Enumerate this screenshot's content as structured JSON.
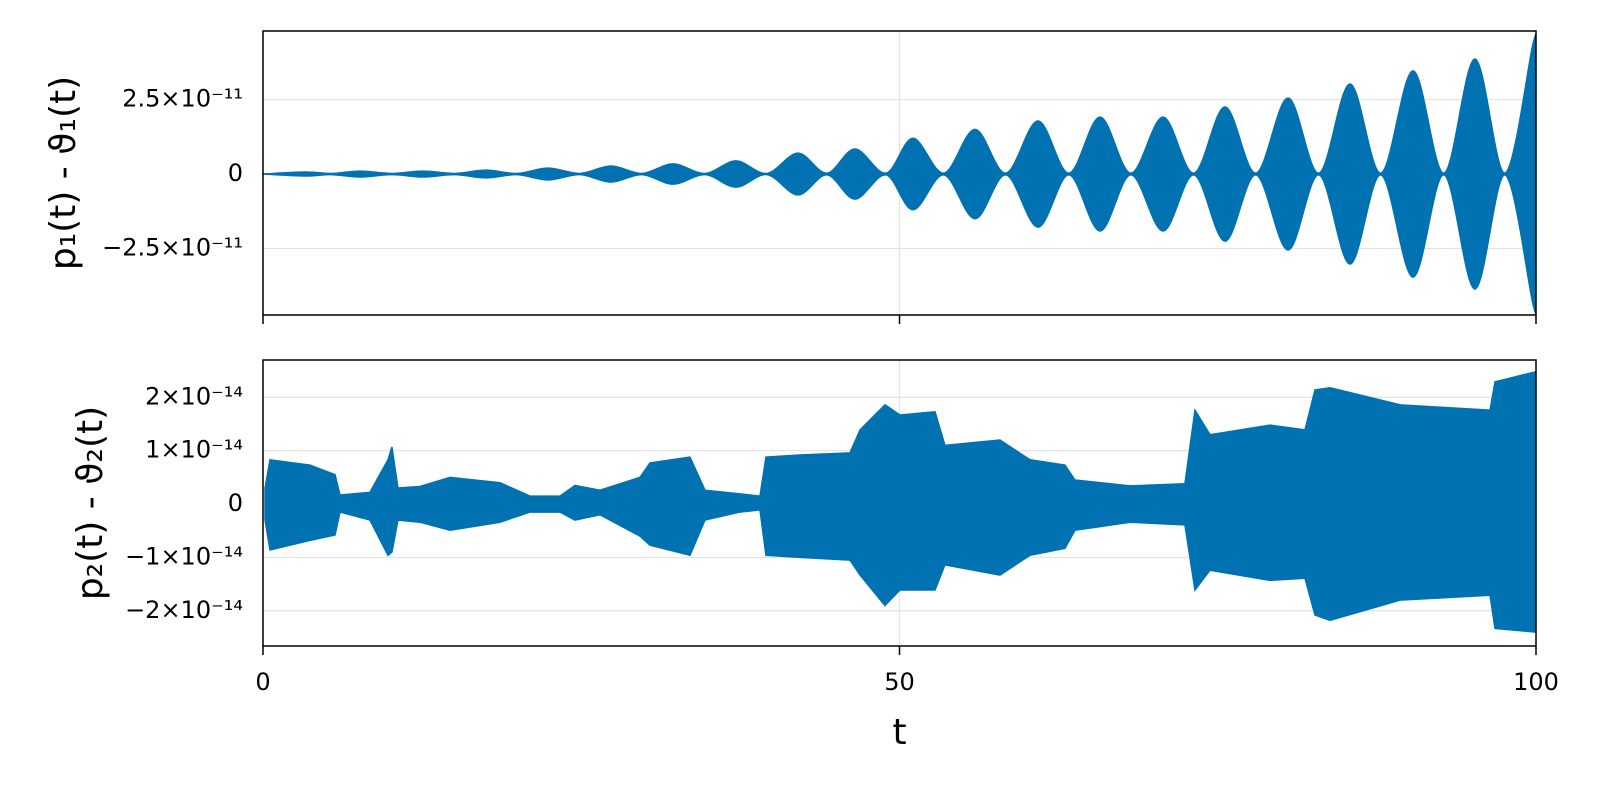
{
  "chart_data": [
    {
      "type": "area",
      "ylabel": "p₁(t) - ϑ₁(t)",
      "color": "#0072b2",
      "curve": "smooth",
      "grid": true,
      "xtick_labels": false,
      "x": [
        0,
        3.3,
        5.34,
        7.62,
        10.13,
        12.57,
        15.08,
        17.52,
        19.95,
        22.39,
        24.9,
        27.34,
        29.77,
        32.21,
        34.72,
        37.15,
        39.59,
        42.02,
        44.3,
        46.5,
        48.94,
        51.06,
        53.49,
        55.93,
        58.36,
        60.88,
        63.31,
        65.75,
        68.18,
        70.7,
        73.13,
        75.57,
        78.0,
        80.52,
        82.95,
        85.39,
        87.82,
        90.34,
        92.77,
        95.2,
        97.56,
        99.76,
        100
      ],
      "upper": [
        0,
        6.7e-13,
        2e-13,
        1e-12,
        2e-13,
        1e-12,
        2e-13,
        1.3e-12,
        2e-13,
        2e-12,
        2e-13,
        2.7e-12,
        2e-13,
        3.4e-12,
        2e-13,
        4.4e-12,
        2e-13,
        7e-12,
        3e-13,
        8.4e-12,
        3e-13,
        1.2e-11,
        3e-13,
        1.5e-11,
        3e-13,
        1.78e-11,
        3e-13,
        1.91e-11,
        3e-13,
        1.91e-11,
        3e-13,
        2.25e-11,
        3e-13,
        2.55e-11,
        3e-13,
        3.02e-11,
        3e-13,
        3.46e-11,
        3e-13,
        3.86e-11,
        3e-13,
        4.36e-11,
        4.36e-11
      ],
      "lower": [
        0,
        -6.7e-13,
        -2e-13,
        -1e-12,
        -2e-13,
        -1e-12,
        -2e-13,
        -1.3e-12,
        -2e-13,
        -2e-12,
        -2e-13,
        -2.7e-12,
        -2e-13,
        -3.4e-12,
        -2e-13,
        -4.4e-12,
        -2e-13,
        -7e-12,
        -3e-13,
        -8.4e-12,
        -3e-13,
        -1.2e-11,
        -3e-13,
        -1.5e-11,
        -3e-13,
        -1.78e-11,
        -3e-13,
        -1.91e-11,
        -3e-13,
        -1.91e-11,
        -3e-13,
        -2.25e-11,
        -3e-13,
        -2.55e-11,
        -3e-13,
        -3.02e-11,
        -3e-13,
        -3.46e-11,
        -3e-13,
        -3.86e-11,
        -3e-13,
        -4.36e-11,
        -4.36e-11
      ],
      "xlim": [
        0,
        100
      ],
      "xticks": [
        0,
        50,
        100
      ],
      "ylim": [
        -4.73e-11,
        4.8e-11
      ],
      "yticks": [
        {
          "value": -2.5e-11,
          "label": "−2.5×10⁻¹¹"
        },
        0,
        {
          "value": 2.5e-11,
          "label": "2.5×10⁻¹¹"
        }
      ]
    },
    {
      "type": "area",
      "ylabel": "p₂(t) - ϑ₂(t)",
      "xlabel": "t",
      "color": "#0072b2",
      "curve": "linear",
      "grid": true,
      "xtick_labels": true,
      "x": [
        0.16,
        0.55,
        3.69,
        5.66,
        6.05,
        8.4,
        9.82,
        10.13,
        10.6,
        12.33,
        14.69,
        18.62,
        20.97,
        23.33,
        24.51,
        26.47,
        29.61,
        30.4,
        33.54,
        34.72,
        37.47,
        39.04,
        39.51,
        42.18,
        46.11,
        46.9,
        48.86,
        50.04,
        52.79,
        53.57,
        57.89,
        60.25,
        63.0,
        63.78,
        68.1,
        72.42,
        73.21,
        74.39,
        79.1,
        81.85,
        82.64,
        83.82,
        89.32,
        96.39,
        96.78,
        100
      ],
      "upper": [
        3e-15,
        8.3e-15,
        7.3e-15,
        5.5e-15,
        1.7e-15,
        2.2e-15,
        8.3e-15,
        1.07e-14,
        3e-15,
        3.3e-15,
        5e-15,
        4e-15,
        1.5e-15,
        1.5e-15,
        3.5e-15,
        2.6e-15,
        5e-15,
        7.7e-15,
        8.8e-15,
        2.6e-15,
        1.9e-15,
        1.5e-15,
        8.8e-15,
        9.2e-15,
        9.6e-15,
        1.39e-14,
        1.86e-14,
        1.67e-14,
        1.73e-14,
        1.1e-14,
        1.2e-14,
        8.3e-15,
        7.3e-15,
        4.5e-15,
        3.4e-15,
        3.8e-15,
        1.76e-14,
        1.3e-14,
        1.48e-14,
        1.39e-14,
        2.14e-14,
        2.18e-14,
        1.86e-14,
        1.76e-14,
        2.29e-14,
        2.48e-14
      ],
      "lower": [
        -3e-15,
        -8.6e-15,
        -6.8e-15,
        -5.8e-15,
        -1.5e-15,
        -3e-15,
        -9.6e-15,
        -9e-15,
        -3e-15,
        -3.4e-15,
        -4.9e-15,
        -3.4e-15,
        -1.5e-15,
        -1.5e-15,
        -3e-15,
        -2e-15,
        -6e-15,
        -7.7e-15,
        -9.6e-15,
        -3e-15,
        -1.5e-15,
        -1.1e-15,
        -9.6e-15,
        -1e-14,
        -1.05e-14,
        -1.33e-14,
        -1.9e-14,
        -1.61e-14,
        -1.61e-14,
        -1.14e-14,
        -1.33e-14,
        -9.6e-15,
        -8.3e-15,
        -4.9e-15,
        -3.4e-15,
        -3.9e-15,
        -1.61e-14,
        -1.24e-14,
        -1.43e-14,
        -1.39e-14,
        -2.08e-14,
        -2.18e-14,
        -1.8e-14,
        -1.71e-14,
        -2.33e-14,
        -2.4e-14
      ],
      "xlim": [
        0,
        100
      ],
      "xticks": [
        0,
        50,
        100
      ],
      "ylim": [
        -2.66e-14,
        2.7e-14
      ],
      "yticks": [
        {
          "value": -2e-14,
          "label": "−2×10⁻¹⁴"
        },
        {
          "value": -1e-14,
          "label": "−1×10⁻¹⁴"
        },
        0,
        {
          "value": 1e-14,
          "label": "1×10⁻¹⁴"
        },
        {
          "value": 2e-14,
          "label": "2×10⁻¹⁴"
        }
      ]
    }
  ]
}
